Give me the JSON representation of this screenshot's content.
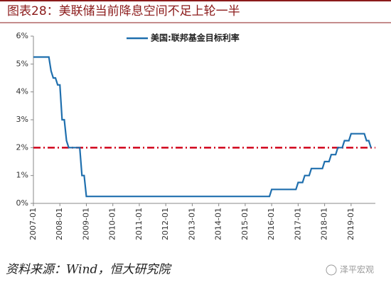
{
  "chart_data": {
    "type": "line",
    "title": "图表28：美联储当前降息空间不足上轮一半",
    "source": "资料来源：Wind，恒大研究院",
    "watermark": "泽平宏观",
    "x": [
      "2007-01",
      "2007-08",
      "2007-09",
      "2007-10",
      "2007-11",
      "2007-12",
      "2008-01",
      "2008-02",
      "2008-03",
      "2008-04",
      "2008-05",
      "2008-10",
      "2008-11",
      "2008-12",
      "2009-01",
      "2015-12",
      "2016-01",
      "2016-12",
      "2017-01",
      "2017-03",
      "2017-04",
      "2017-06",
      "2017-07",
      "2017-12",
      "2018-01",
      "2018-03",
      "2018-04",
      "2018-06",
      "2018-07",
      "2018-09",
      "2018-10",
      "2018-12",
      "2019-01",
      "2019-07",
      "2019-08",
      "2019-09",
      "2019-10"
    ],
    "series": [
      {
        "name": "美国:联邦基金目标利率",
        "color": "#1f6fae",
        "values": [
          5.25,
          5.25,
          4.75,
          4.5,
          4.5,
          4.25,
          4.25,
          3.0,
          3.0,
          2.25,
          2.0,
          2.0,
          1.0,
          1.0,
          0.25,
          0.25,
          0.5,
          0.5,
          0.75,
          0.75,
          1.0,
          1.0,
          1.25,
          1.25,
          1.5,
          1.5,
          1.75,
          1.75,
          2.0,
          2.0,
          2.25,
          2.25,
          2.5,
          2.5,
          2.25,
          2.25,
          2.0
        ]
      }
    ],
    "reference_line": {
      "value": 2,
      "color": "#d0021b"
    },
    "xlim": [
      "2007-01",
      "2019-12"
    ],
    "xticks": [
      "2007-01",
      "2008-01",
      "2009-01",
      "2010-01",
      "2011-01",
      "2012-01",
      "2013-01",
      "2014-01",
      "2015-01",
      "2016-01",
      "2017-01",
      "2018-01",
      "2019-01"
    ],
    "ylim": [
      0,
      6
    ],
    "yticks": [
      {
        "value": 0,
        "label": "0%"
      },
      {
        "value": 1,
        "label": "1%"
      },
      {
        "value": 2,
        "label": "2%"
      },
      {
        "value": 3,
        "label": "3%"
      },
      {
        "value": 4,
        "label": "4%"
      },
      {
        "value": 5,
        "label": "5%"
      },
      {
        "value": 6,
        "label": "6%"
      }
    ],
    "legend": "upper left"
  }
}
